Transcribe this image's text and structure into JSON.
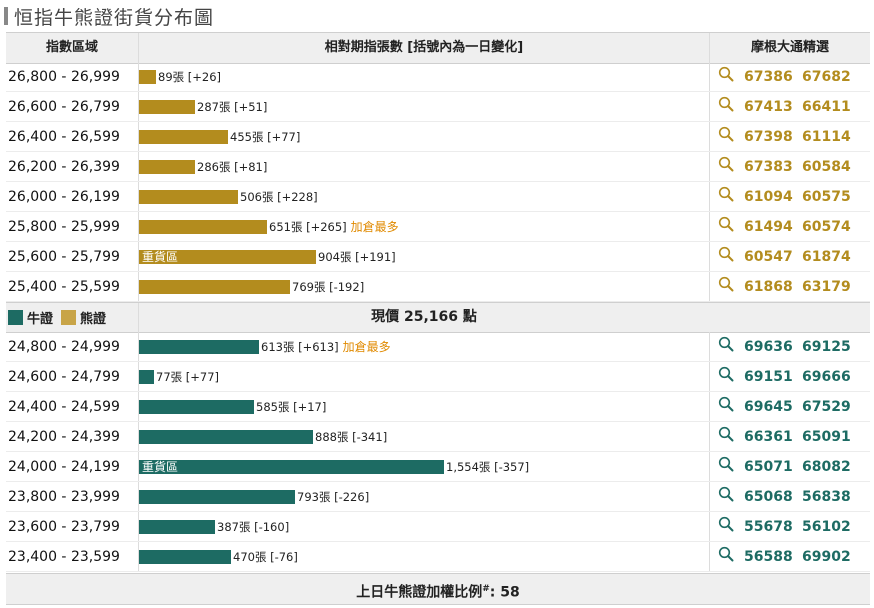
{
  "title": "恒指牛熊證街貨分布圖",
  "headers": {
    "col1": "指數區域",
    "col2": "相對期指張數 [括號內為一日變化]",
    "col3": "摩根大通精選"
  },
  "legend": {
    "bull": "牛證",
    "bear": "熊證"
  },
  "current_price_prefix": "現價",
  "current_price_value": "25,166",
  "current_price_suffix": "點",
  "footer": {
    "text": "上日牛熊證加權比例",
    "mark": "#",
    "value": ": 58"
  },
  "heavy_label": "重貨區",
  "colors": {
    "bear": "#b38c1e",
    "bull": "#1d6b63",
    "note": "#e08a00"
  },
  "icon": "search-icon",
  "chart_data": {
    "type": "bar",
    "orientation": "horizontal",
    "unit": "張",
    "bear_rows": [
      {
        "range": "26,800 - 26,999",
        "value": 89,
        "label": "89張 [+26]",
        "note": "",
        "heavy": false,
        "codes": [
          "67386",
          "67682"
        ]
      },
      {
        "range": "26,600 - 26,799",
        "value": 287,
        "label": "287張 [+51]",
        "note": "",
        "heavy": false,
        "codes": [
          "67413",
          "66411"
        ]
      },
      {
        "range": "26,400 - 26,599",
        "value": 455,
        "label": "455張 [+77]",
        "note": "",
        "heavy": false,
        "codes": [
          "67398",
          "61114"
        ]
      },
      {
        "range": "26,200 - 26,399",
        "value": 286,
        "label": "286張 [+81]",
        "note": "",
        "heavy": false,
        "codes": [
          "67383",
          "60584"
        ]
      },
      {
        "range": "26,000 - 26,199",
        "value": 506,
        "label": "506張 [+228]",
        "note": "",
        "heavy": false,
        "codes": [
          "61094",
          "60575"
        ]
      },
      {
        "range": "25,800 - 25,999",
        "value": 651,
        "label": "651張 [+265]",
        "note": "加倉最多",
        "heavy": false,
        "codes": [
          "61494",
          "60574"
        ]
      },
      {
        "range": "25,600 - 25,799",
        "value": 904,
        "label": "904張 [+191]",
        "note": "",
        "heavy": true,
        "codes": [
          "60547",
          "61874"
        ]
      },
      {
        "range": "25,400 - 25,599",
        "value": 769,
        "label": "769張 [-192]",
        "note": "",
        "heavy": false,
        "codes": [
          "61868",
          "63179"
        ]
      }
    ],
    "bull_rows": [
      {
        "range": "24,800 - 24,999",
        "value": 613,
        "label": "613張 [+613]",
        "note": "加倉最多",
        "heavy": false,
        "codes": [
          "69636",
          "69125"
        ]
      },
      {
        "range": "24,600 - 24,799",
        "value": 77,
        "label": "77張 [+77]",
        "note": "",
        "heavy": false,
        "codes": [
          "69151",
          "69666"
        ]
      },
      {
        "range": "24,400 - 24,599",
        "value": 585,
        "label": "585張 [+17]",
        "note": "",
        "heavy": false,
        "codes": [
          "69645",
          "67529"
        ]
      },
      {
        "range": "24,200 - 24,399",
        "value": 888,
        "label": "888張 [-341]",
        "note": "",
        "heavy": false,
        "codes": [
          "66361",
          "65091"
        ]
      },
      {
        "range": "24,000 - 24,199",
        "value": 1554,
        "label": "1,554張 [-357]",
        "note": "",
        "heavy": true,
        "codes": [
          "65071",
          "68082"
        ]
      },
      {
        "range": "23,800 - 23,999",
        "value": 793,
        "label": "793張 [-226]",
        "note": "",
        "heavy": false,
        "codes": [
          "65068",
          "56838"
        ]
      },
      {
        "range": "23,600 - 23,799",
        "value": 387,
        "label": "387張 [-160]",
        "note": "",
        "heavy": false,
        "codes": [
          "55678",
          "56102"
        ]
      },
      {
        "range": "23,400 - 23,599",
        "value": 470,
        "label": "470張 [-76]",
        "note": "",
        "heavy": false,
        "codes": [
          "56588",
          "69902"
        ]
      }
    ]
  }
}
